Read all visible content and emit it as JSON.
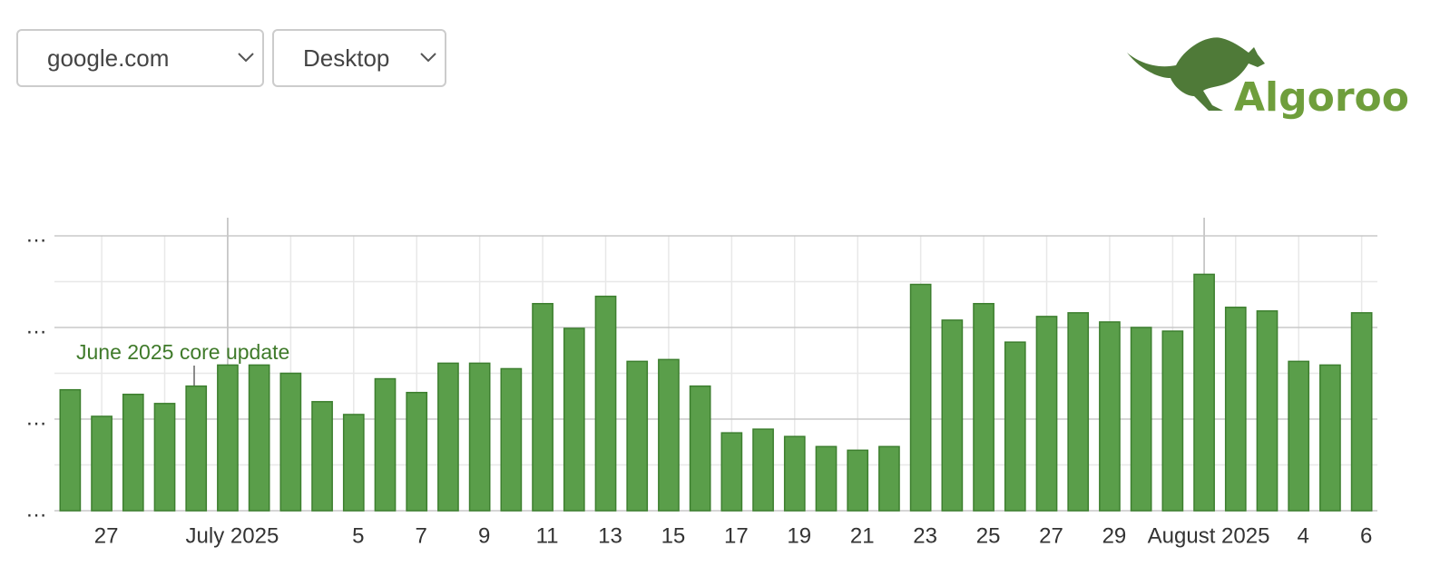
{
  "controls": {
    "site": "google.com",
    "device": "Desktop"
  },
  "logo": "Algoroo",
  "chart_data": {
    "type": "bar",
    "annotation": "June 2025 core update",
    "categories": [
      null,
      "27",
      null,
      null,
      null,
      "July 2025",
      null,
      null,
      null,
      "5",
      null,
      "7",
      null,
      "9",
      null,
      "11",
      null,
      "13",
      null,
      "15",
      null,
      "17",
      null,
      "19",
      null,
      "21",
      null,
      "23",
      null,
      "25",
      null,
      "27",
      null,
      "29",
      null,
      null,
      "August 2025",
      null,
      null,
      "4",
      null,
      "6"
    ],
    "values": [
      1.32,
      1.03,
      1.27,
      1.17,
      1.36,
      1.59,
      1.59,
      1.5,
      1.19,
      1.05,
      1.44,
      1.29,
      1.61,
      1.61,
      1.55,
      2.26,
      1.99,
      2.34,
      1.63,
      1.65,
      1.36,
      0.85,
      0.89,
      0.81,
      0.7,
      0.66,
      0.7,
      2.47,
      2.08,
      2.26,
      1.84,
      2.12,
      2.16,
      2.06,
      2.0,
      1.96,
      2.58,
      2.22,
      2.18,
      1.63,
      1.59,
      2.16
    ],
    "color": "#5a9e4a",
    "ylim": [
      0,
      3
    ],
    "yticks": [
      {
        "value": 0,
        "label": "…"
      },
      {
        "value": 1,
        "label": "…"
      },
      {
        "value": 2,
        "label": "…"
      },
      {
        "value": 3,
        "label": "…"
      }
    ],
    "minor_yticks": [
      0.5,
      1.5,
      2.5
    ],
    "grid": true
  }
}
